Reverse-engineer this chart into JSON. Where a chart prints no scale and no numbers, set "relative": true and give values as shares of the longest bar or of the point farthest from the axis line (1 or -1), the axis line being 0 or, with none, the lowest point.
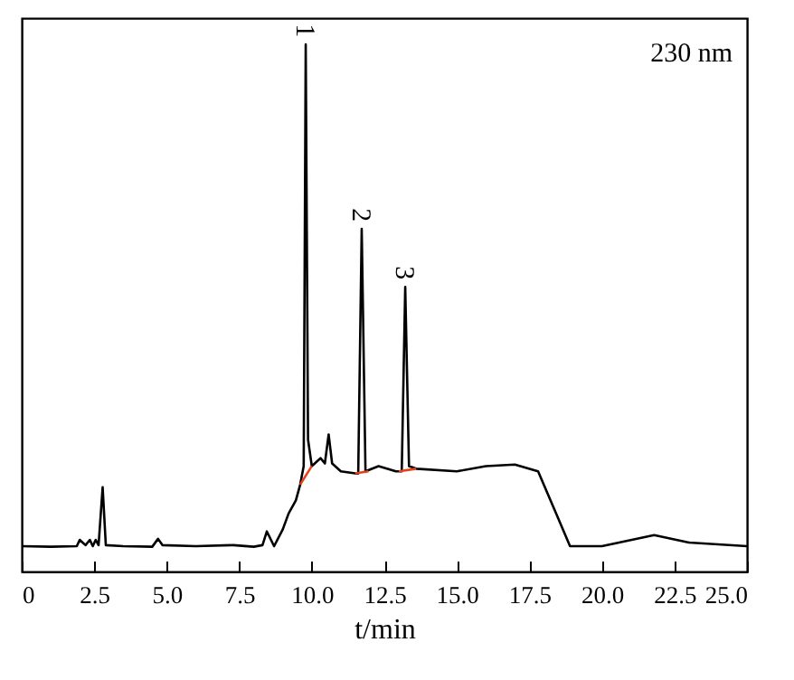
{
  "chart_data": {
    "type": "line",
    "relative": true,
    "xlabel": "t/min",
    "xlim": [
      0,
      25
    ],
    "xticks": [
      0,
      2.5,
      {
        "value": 5,
        "label": "5.0"
      },
      7.5,
      {
        "value": 10,
        "label": "10.0"
      },
      12.5,
      {
        "value": 15,
        "label": "15.0"
      },
      17.5,
      {
        "value": 20,
        "label": "20.0"
      },
      22.5,
      {
        "value": 25,
        "label": "25.0"
      }
    ],
    "annotations": [
      "230 nm",
      {
        "text": "1",
        "x": 9.79,
        "y": 1
      },
      {
        "text": "2",
        "x": 11.72,
        "y": 0.65
      },
      {
        "text": "3",
        "x": 13.22,
        "y": 0.54
      }
    ],
    "series": [
      {
        "color": "#000000",
        "x": [
          0,
          1.0,
          1.9,
          2.0,
          2.1,
          2.2,
          2.35,
          2.45,
          2.55,
          2.65,
          2.79,
          2.9,
          3.5,
          4.5,
          4.7,
          4.85,
          6.0,
          7.3,
          8.0,
          8.3,
          8.45,
          8.7,
          9.0,
          9.2,
          9.45,
          9.6,
          9.72,
          9.79,
          9.87,
          10.0,
          10.3,
          10.45,
          10.58,
          10.7,
          11.0,
          11.5,
          11.6,
          11.72,
          11.85,
          12.3,
          12.9,
          13.1,
          13.22,
          13.35,
          13.6,
          15.0,
          16.0,
          17.0,
          17.8,
          18.5,
          18.9,
          20.0,
          21.8,
          23.0,
          25.0
        ],
        "values": [
          0.048,
          0.047,
          0.048,
          0.06,
          0.055,
          0.05,
          0.06,
          0.048,
          0.06,
          0.05,
          0.16,
          0.05,
          0.048,
          0.047,
          0.062,
          0.05,
          0.048,
          0.05,
          0.047,
          0.05,
          0.076,
          0.048,
          0.08,
          0.11,
          0.135,
          0.165,
          0.2,
          1,
          0.25,
          0.2,
          0.215,
          0.205,
          0.26,
          0.205,
          0.19,
          0.186,
          0.186,
          0.65,
          0.19,
          0.2,
          0.19,
          0.19,
          0.54,
          0.2,
          0.195,
          0.19,
          0.2,
          0.203,
          0.19,
          0.1,
          0.048,
          0.048,
          0.069,
          0.055,
          0.048
        ]
      },
      {
        "color": "#e8401c",
        "x": [
          9.6,
          10.0
        ],
        "values": [
          0.165,
          0.2
        ]
      },
      {
        "color": "#e8401c",
        "x": [
          11.5,
          11.95
        ],
        "values": [
          0.186,
          0.19
        ]
      },
      {
        "color": "#e8401c",
        "x": [
          13.0,
          13.6
        ],
        "values": [
          0.19,
          0.195
        ]
      }
    ]
  }
}
